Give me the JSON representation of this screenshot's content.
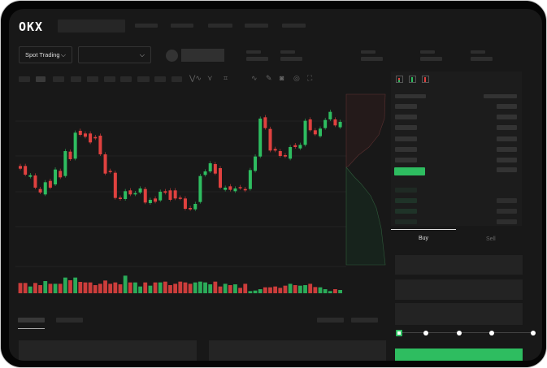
{
  "brand": {
    "logo_text": "OKX"
  },
  "toolbar": {
    "market_type": "Spot Trading",
    "pair_select": ""
  },
  "order_form": {
    "tabs": [
      {
        "label": "Buy",
        "active": true
      },
      {
        "label": "Sell",
        "active": false
      }
    ],
    "slider_percent": 0,
    "slider_steps": [
      0,
      25,
      50,
      75,
      100
    ]
  },
  "icons": [
    "indicator-icon",
    "chart-type-icon",
    "draw-line-icon",
    "pencil-icon",
    "camera-icon",
    "settings-icon",
    "fullscreen-icon",
    "book-both-icon",
    "book-bids-icon",
    "book-asks-icon",
    "chevron-down-icon"
  ],
  "colors": {
    "up": "#2ebd60",
    "down": "#e0413f",
    "background": "#181818",
    "panel": "#1c1c1c"
  },
  "chart_data": {
    "type": "candlestick",
    "candles": [
      [
        "r",
        170,
        160
      ],
      [
        "r",
        170,
        138
      ],
      [
        "g",
        130,
        136
      ],
      [
        "r",
        135,
        90
      ],
      [
        "r",
        85,
        72
      ],
      [
        "g",
        65,
        110
      ],
      [
        "r",
        115,
        90
      ],
      [
        "g",
        102,
        157
      ],
      [
        "r",
        152,
        128
      ],
      [
        "g",
        133,
        225
      ],
      [
        "r",
        223,
        195
      ],
      [
        "g",
        197,
        293
      ],
      [
        "r",
        300,
        285
      ],
      [
        "r",
        290,
        278
      ],
      [
        "r",
        290,
        257
      ],
      [
        "r",
        277,
        272
      ],
      [
        "r",
        282,
        213
      ],
      [
        "r",
        213,
        142
      ],
      [
        "r",
        152,
        148
      ],
      [
        "r",
        145,
        52
      ],
      [
        "r",
        53,
        48
      ],
      [
        "g",
        48,
        77
      ],
      [
        "r",
        80,
        65
      ],
      [
        "g",
        65,
        70
      ],
      [
        "g",
        72,
        87
      ],
      [
        "r",
        85,
        35
      ],
      [
        "g",
        33,
        45
      ],
      [
        "r",
        50,
        38
      ],
      [
        "g",
        43,
        75
      ],
      [
        "r",
        77,
        71
      ],
      [
        "r",
        80,
        45
      ],
      [
        "r",
        80,
        50
      ],
      [
        "r",
        53,
        50
      ],
      [
        "r",
        50,
        12
      ],
      [
        "r",
        15,
        10
      ],
      [
        "g",
        10,
        30
      ],
      [
        "g",
        37,
        133
      ],
      [
        "g",
        137,
        150
      ],
      [
        "g",
        150,
        180
      ],
      [
        "r",
        177,
        142
      ],
      [
        "r",
        162,
        90
      ],
      [
        "g",
        82,
        90
      ],
      [
        "r",
        95,
        82
      ],
      [
        "g",
        77,
        87
      ],
      [
        "r",
        92,
        88
      ],
      [
        "r",
        85,
        80
      ],
      [
        "g",
        85,
        155
      ],
      [
        "g",
        152,
        205
      ],
      [
        "g",
        205,
        345
      ],
      [
        "r",
        350,
        310
      ],
      [
        "r",
        307,
        227
      ],
      [
        "r",
        233,
        227
      ],
      [
        "r",
        225,
        207
      ],
      [
        "r",
        210,
        205
      ],
      [
        "g",
        197,
        240
      ],
      [
        "r",
        247,
        240
      ],
      [
        "g",
        235,
        248
      ],
      [
        "g",
        248,
        337
      ],
      [
        "r",
        342,
        302
      ],
      [
        "r",
        302,
        287
      ],
      [
        "g",
        280,
        308
      ],
      [
        "g",
        310,
        340
      ],
      [
        "g",
        342,
        370
      ],
      [
        "r",
        342,
        320
      ],
      [
        "g",
        313,
        333
      ]
    ],
    "volumes": [
      38,
      38,
      25,
      38,
      30,
      45,
      35,
      35,
      35,
      58,
      48,
      58,
      42,
      40,
      40,
      30,
      35,
      47,
      35,
      40,
      33,
      65,
      40,
      40,
      25,
      40,
      28,
      40,
      40,
      43,
      30,
      35,
      43,
      40,
      35,
      40,
      43,
      40,
      33,
      43,
      25,
      35,
      30,
      33,
      20,
      35,
      8,
      10,
      15,
      22,
      22,
      25,
      20,
      28,
      35,
      30,
      28,
      30,
      35,
      23,
      22,
      15,
      8,
      15,
      12
    ],
    "grid": true
  }
}
